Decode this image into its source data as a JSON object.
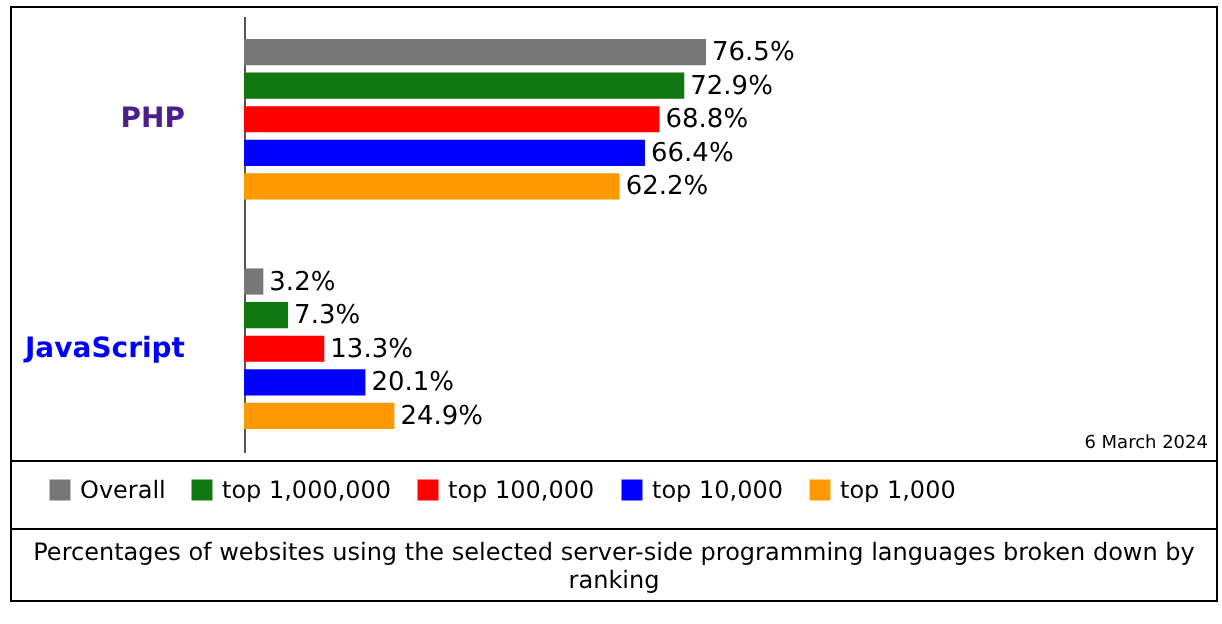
{
  "chart_data": {
    "type": "bar",
    "orientation": "horizontal",
    "title": "Percentages of websites using the selected server-side programming languages broken down by ranking",
    "categories": [
      "PHP",
      "JavaScript"
    ],
    "series": [
      {
        "name": "Overall",
        "color": "#777777",
        "values": [
          76.5,
          3.2
        ],
        "value_labels": [
          "76.5%",
          "3.2%"
        ]
      },
      {
        "name": "top 1,000,000",
        "color": "#117711",
        "values": [
          72.9,
          7.3
        ],
        "value_labels": [
          "72.9%",
          "7.3%"
        ]
      },
      {
        "name": "top 100,000",
        "color": "#ff0000",
        "values": [
          68.8,
          13.3
        ],
        "value_labels": [
          "68.8%",
          "13.3%"
        ]
      },
      {
        "name": "top 10,000",
        "color": "#0000ff",
        "values": [
          66.4,
          20.1
        ],
        "value_labels": [
          "66.4%",
          "20.1%"
        ]
      },
      {
        "name": "top 1,000",
        "color": "#ff9900",
        "values": [
          62.2,
          24.9
        ],
        "value_labels": [
          "62.2%",
          "24.9%"
        ]
      }
    ],
    "annotations": [
      "6 March 2024"
    ],
    "legend": "bottom",
    "grid": false
  }
}
